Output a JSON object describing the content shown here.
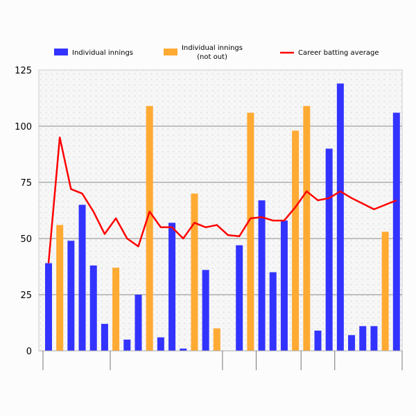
{
  "chart_data": {
    "type": "bar",
    "title": "",
    "xlabel": "",
    "ylabel": "",
    "ylim": [
      0,
      125
    ],
    "yticks": [
      "0",
      "25",
      "50",
      "75",
      "100",
      "125"
    ],
    "grid": true,
    "legend_placement": "top",
    "colors": {
      "innings": "#3333ff",
      "not_out": "#ffaa33",
      "average": "#ff0000"
    },
    "legend": {
      "innings": "Individual innings",
      "not_out_line1": "Individual innings",
      "not_out_line2": "(not out)",
      "average": "Career batting average"
    },
    "innings": [
      {
        "value": 39,
        "not_out": false
      },
      {
        "value": 56,
        "not_out": true
      },
      {
        "value": 49,
        "not_out": false
      },
      {
        "value": 65,
        "not_out": false
      },
      {
        "value": 38,
        "not_out": false
      },
      {
        "value": 12,
        "not_out": false
      },
      {
        "value": 37,
        "not_out": true
      },
      {
        "value": 5,
        "not_out": false
      },
      {
        "value": 25,
        "not_out": false
      },
      {
        "value": 109,
        "not_out": true
      },
      {
        "value": 6,
        "not_out": false
      },
      {
        "value": 57,
        "not_out": false
      },
      {
        "value": 1,
        "not_out": false
      },
      {
        "value": 70,
        "not_out": true
      },
      {
        "value": 36,
        "not_out": false
      },
      {
        "value": 10,
        "not_out": true
      },
      {
        "value": 0,
        "not_out": false
      },
      {
        "value": 47,
        "not_out": false
      },
      {
        "value": 106,
        "not_out": true
      },
      {
        "value": 67,
        "not_out": false
      },
      {
        "value": 35,
        "not_out": false
      },
      {
        "value": 58,
        "not_out": false
      },
      {
        "value": 98,
        "not_out": true
      },
      {
        "value": 109,
        "not_out": true
      },
      {
        "value": 9,
        "not_out": false
      },
      {
        "value": 90,
        "not_out": false
      },
      {
        "value": 119,
        "not_out": false
      },
      {
        "value": 7,
        "not_out": false
      },
      {
        "value": 11,
        "not_out": false
      },
      {
        "value": 11,
        "not_out": false
      },
      {
        "value": 53,
        "not_out": true
      },
      {
        "value": 106,
        "not_out": false
      }
    ],
    "career_average": [
      39,
      95,
      72,
      70,
      62,
      52,
      59,
      50,
      46.5,
      62,
      55,
      55,
      50,
      57,
      55,
      56,
      51.5,
      51,
      59,
      59.5,
      58,
      58,
      64,
      71,
      67,
      68,
      71,
      68,
      65.5,
      63,
      65,
      67
    ],
    "group_boundaries_after_innings": [
      0,
      6,
      16,
      19,
      23,
      26,
      32
    ]
  }
}
